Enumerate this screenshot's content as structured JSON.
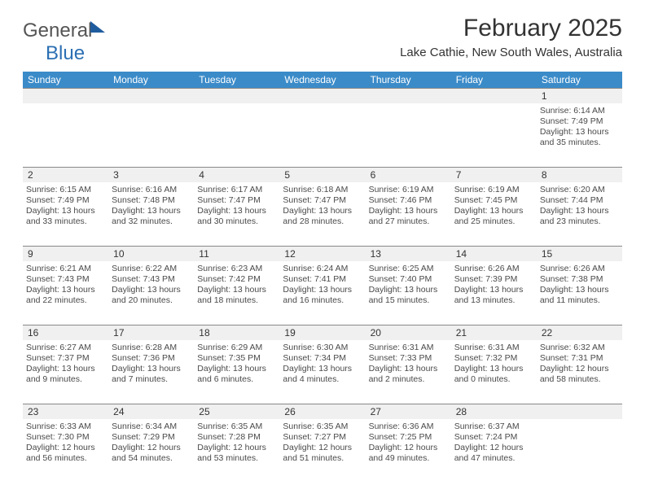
{
  "logo": {
    "general": "General",
    "blue": "Blue"
  },
  "title": "February 2025",
  "location": "Lake Cathie, New South Wales, Australia",
  "colors": {
    "header_bg": "#3b8bc9",
    "header_text": "#ffffff",
    "rule": "#888888",
    "stripe": "#f0f0f0",
    "text": "#4a4a4a"
  },
  "days_of_week": [
    "Sunday",
    "Monday",
    "Tuesday",
    "Wednesday",
    "Thursday",
    "Friday",
    "Saturday"
  ],
  "weeks": [
    [
      {
        "n": "",
        "lines": [
          "",
          "",
          "",
          ""
        ]
      },
      {
        "n": "",
        "lines": [
          "",
          "",
          "",
          ""
        ]
      },
      {
        "n": "",
        "lines": [
          "",
          "",
          "",
          ""
        ]
      },
      {
        "n": "",
        "lines": [
          "",
          "",
          "",
          ""
        ]
      },
      {
        "n": "",
        "lines": [
          "",
          "",
          "",
          ""
        ]
      },
      {
        "n": "",
        "lines": [
          "",
          "",
          "",
          ""
        ]
      },
      {
        "n": "1",
        "lines": [
          "Sunrise: 6:14 AM",
          "Sunset: 7:49 PM",
          "Daylight: 13 hours",
          "and 35 minutes."
        ]
      }
    ],
    [
      {
        "n": "2",
        "lines": [
          "Sunrise: 6:15 AM",
          "Sunset: 7:49 PM",
          "Daylight: 13 hours",
          "and 33 minutes."
        ]
      },
      {
        "n": "3",
        "lines": [
          "Sunrise: 6:16 AM",
          "Sunset: 7:48 PM",
          "Daylight: 13 hours",
          "and 32 minutes."
        ]
      },
      {
        "n": "4",
        "lines": [
          "Sunrise: 6:17 AM",
          "Sunset: 7:47 PM",
          "Daylight: 13 hours",
          "and 30 minutes."
        ]
      },
      {
        "n": "5",
        "lines": [
          "Sunrise: 6:18 AM",
          "Sunset: 7:47 PM",
          "Daylight: 13 hours",
          "and 28 minutes."
        ]
      },
      {
        "n": "6",
        "lines": [
          "Sunrise: 6:19 AM",
          "Sunset: 7:46 PM",
          "Daylight: 13 hours",
          "and 27 minutes."
        ]
      },
      {
        "n": "7",
        "lines": [
          "Sunrise: 6:19 AM",
          "Sunset: 7:45 PM",
          "Daylight: 13 hours",
          "and 25 minutes."
        ]
      },
      {
        "n": "8",
        "lines": [
          "Sunrise: 6:20 AM",
          "Sunset: 7:44 PM",
          "Daylight: 13 hours",
          "and 23 minutes."
        ]
      }
    ],
    [
      {
        "n": "9",
        "lines": [
          "Sunrise: 6:21 AM",
          "Sunset: 7:43 PM",
          "Daylight: 13 hours",
          "and 22 minutes."
        ]
      },
      {
        "n": "10",
        "lines": [
          "Sunrise: 6:22 AM",
          "Sunset: 7:43 PM",
          "Daylight: 13 hours",
          "and 20 minutes."
        ]
      },
      {
        "n": "11",
        "lines": [
          "Sunrise: 6:23 AM",
          "Sunset: 7:42 PM",
          "Daylight: 13 hours",
          "and 18 minutes."
        ]
      },
      {
        "n": "12",
        "lines": [
          "Sunrise: 6:24 AM",
          "Sunset: 7:41 PM",
          "Daylight: 13 hours",
          "and 16 minutes."
        ]
      },
      {
        "n": "13",
        "lines": [
          "Sunrise: 6:25 AM",
          "Sunset: 7:40 PM",
          "Daylight: 13 hours",
          "and 15 minutes."
        ]
      },
      {
        "n": "14",
        "lines": [
          "Sunrise: 6:26 AM",
          "Sunset: 7:39 PM",
          "Daylight: 13 hours",
          "and 13 minutes."
        ]
      },
      {
        "n": "15",
        "lines": [
          "Sunrise: 6:26 AM",
          "Sunset: 7:38 PM",
          "Daylight: 13 hours",
          "and 11 minutes."
        ]
      }
    ],
    [
      {
        "n": "16",
        "lines": [
          "Sunrise: 6:27 AM",
          "Sunset: 7:37 PM",
          "Daylight: 13 hours",
          "and 9 minutes."
        ]
      },
      {
        "n": "17",
        "lines": [
          "Sunrise: 6:28 AM",
          "Sunset: 7:36 PM",
          "Daylight: 13 hours",
          "and 7 minutes."
        ]
      },
      {
        "n": "18",
        "lines": [
          "Sunrise: 6:29 AM",
          "Sunset: 7:35 PM",
          "Daylight: 13 hours",
          "and 6 minutes."
        ]
      },
      {
        "n": "19",
        "lines": [
          "Sunrise: 6:30 AM",
          "Sunset: 7:34 PM",
          "Daylight: 13 hours",
          "and 4 minutes."
        ]
      },
      {
        "n": "20",
        "lines": [
          "Sunrise: 6:31 AM",
          "Sunset: 7:33 PM",
          "Daylight: 13 hours",
          "and 2 minutes."
        ]
      },
      {
        "n": "21",
        "lines": [
          "Sunrise: 6:31 AM",
          "Sunset: 7:32 PM",
          "Daylight: 13 hours",
          "and 0 minutes."
        ]
      },
      {
        "n": "22",
        "lines": [
          "Sunrise: 6:32 AM",
          "Sunset: 7:31 PM",
          "Daylight: 12 hours",
          "and 58 minutes."
        ]
      }
    ],
    [
      {
        "n": "23",
        "lines": [
          "Sunrise: 6:33 AM",
          "Sunset: 7:30 PM",
          "Daylight: 12 hours",
          "and 56 minutes."
        ]
      },
      {
        "n": "24",
        "lines": [
          "Sunrise: 6:34 AM",
          "Sunset: 7:29 PM",
          "Daylight: 12 hours",
          "and 54 minutes."
        ]
      },
      {
        "n": "25",
        "lines": [
          "Sunrise: 6:35 AM",
          "Sunset: 7:28 PM",
          "Daylight: 12 hours",
          "and 53 minutes."
        ]
      },
      {
        "n": "26",
        "lines": [
          "Sunrise: 6:35 AM",
          "Sunset: 7:27 PM",
          "Daylight: 12 hours",
          "and 51 minutes."
        ]
      },
      {
        "n": "27",
        "lines": [
          "Sunrise: 6:36 AM",
          "Sunset: 7:25 PM",
          "Daylight: 12 hours",
          "and 49 minutes."
        ]
      },
      {
        "n": "28",
        "lines": [
          "Sunrise: 6:37 AM",
          "Sunset: 7:24 PM",
          "Daylight: 12 hours",
          "and 47 minutes."
        ]
      },
      {
        "n": "",
        "lines": [
          "",
          "",
          "",
          ""
        ]
      }
    ]
  ]
}
